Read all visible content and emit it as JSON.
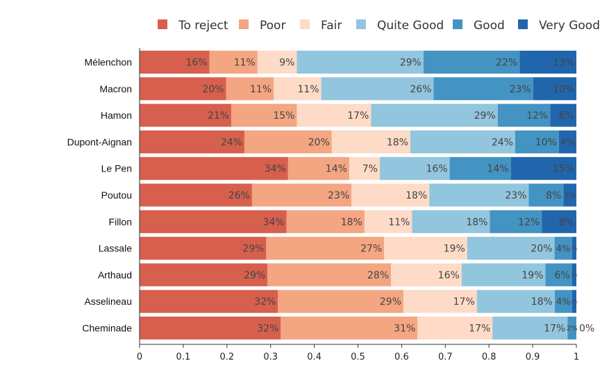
{
  "chart_data": {
    "type": "bar",
    "orientation": "horizontal",
    "stacked": true,
    "normalized": true,
    "categories": [
      "Mélenchon",
      "Macron",
      "Hamon",
      "Dupont-Aignan",
      "Le Pen",
      "Poutou",
      "Fillon",
      "Lassale",
      "Arthaud",
      "Asselineau",
      "Cheminade"
    ],
    "series": [
      {
        "name": "To reject",
        "color": "#d6604d",
        "values": [
          16,
          20,
          21,
          24,
          34,
          26,
          34,
          29,
          29,
          32,
          32
        ],
        "labels": [
          "16%",
          "20%",
          "21%",
          "24%",
          "34%",
          "26%",
          "34%",
          "29%",
          "29%",
          "32%",
          "32%"
        ]
      },
      {
        "name": "Poor",
        "color": "#f4a582",
        "values": [
          11,
          11,
          15,
          20,
          14,
          23,
          18,
          27,
          28,
          29,
          31
        ],
        "labels": [
          "11%",
          "11%",
          "15%",
          "20%",
          "14%",
          "23%",
          "18%",
          "27%",
          "28%",
          "29%",
          "31%"
        ]
      },
      {
        "name": "Fair",
        "color": "#fddbc7",
        "values": [
          9,
          11,
          17,
          18,
          7,
          18,
          11,
          19,
          16,
          17,
          17
        ],
        "labels": [
          "9%",
          "11%",
          "17%",
          "18%",
          "7%",
          "18%",
          "11%",
          "19%",
          "16%",
          "17%",
          "17%"
        ]
      },
      {
        "name": "Quite Good",
        "color": "#92c5de",
        "values": [
          29,
          26,
          29,
          24,
          16,
          23,
          18,
          20,
          19,
          18,
          17
        ],
        "labels": [
          "29%",
          "26%",
          "29%",
          "24%",
          "16%",
          "23%",
          "18%",
          "20%",
          "19%",
          "18%",
          "17%"
        ]
      },
      {
        "name": "Good",
        "color": "#4393c3",
        "values": [
          22,
          23,
          12,
          10,
          14,
          8,
          12,
          4,
          6,
          4,
          2
        ],
        "labels": [
          "22%",
          "23%",
          "12%",
          "10%",
          "14%",
          "8%",
          "12%",
          "4%",
          "6%",
          "4%",
          "2%"
        ]
      },
      {
        "name": "Very Good",
        "color": "#2166ac",
        "values": [
          13,
          10,
          6,
          4,
          15,
          3,
          8,
          1,
          1,
          1,
          0
        ],
        "labels": [
          "13%",
          "10%",
          "6%",
          "4%",
          "15%",
          "3%",
          "8%",
          "1%",
          "1%",
          "1%",
          "0%"
        ]
      }
    ],
    "xlim": [
      0,
      1
    ],
    "xticks": [
      "0",
      "0.1",
      "0.2",
      "0.3",
      "0.4",
      "0.5",
      "0.6",
      "0.7",
      "0.8",
      "0.9",
      "1"
    ],
    "legend_position": "top",
    "grid": false
  }
}
